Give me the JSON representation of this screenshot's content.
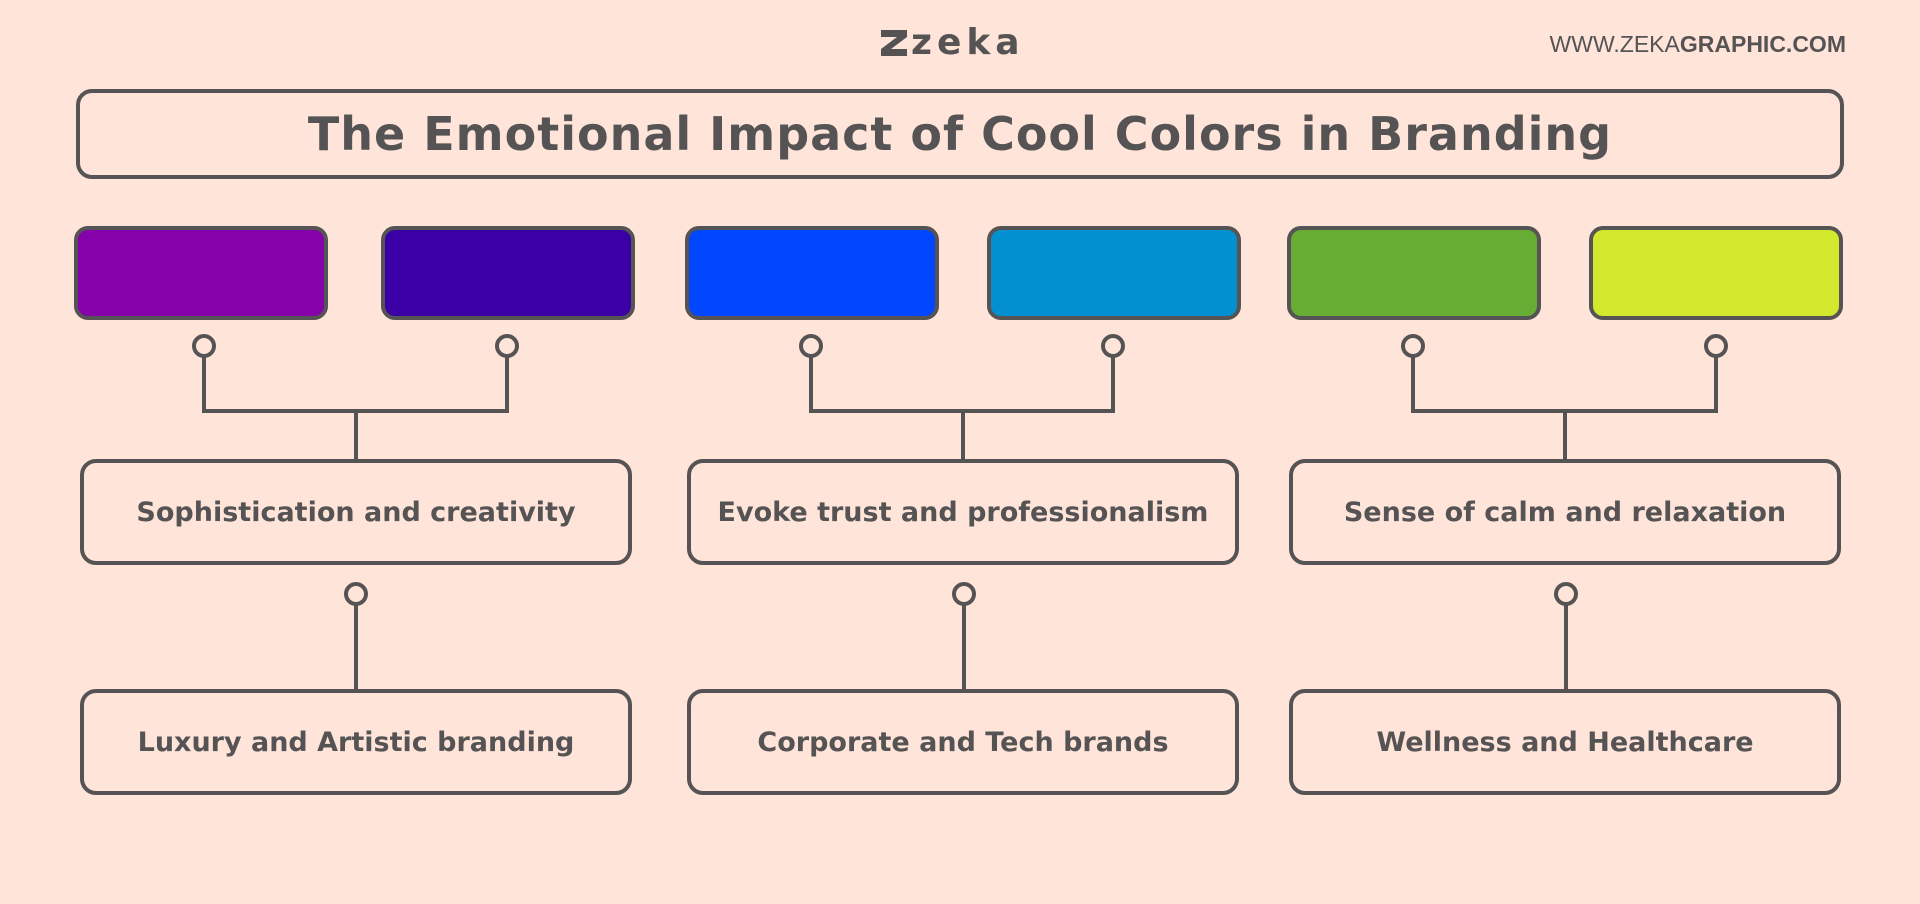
{
  "header": {
    "logo_text": "zeka",
    "url_regular": "WWW.ZEKA",
    "url_bold": "GRAPHIC.COM"
  },
  "title": "The Emotional Impact of Cool Colors in Branding",
  "colors": {
    "ink": "#555353",
    "background": "#ffe4d9"
  },
  "groups": [
    {
      "swatches": [
        "#8502ab",
        "#3a00a6"
      ],
      "emotion": "Sophistication and creativity",
      "usage": "Luxury and Artistic branding"
    },
    {
      "swatches": [
        "#0047ff",
        "#0390d0"
      ],
      "emotion": "Evoke trust and professionalism",
      "usage": "Corporate and Tech brands"
    },
    {
      "swatches": [
        "#67ad34",
        "#d2e82d"
      ],
      "emotion": "Sense of calm and relaxation",
      "usage": "Wellness and Healthcare"
    }
  ]
}
